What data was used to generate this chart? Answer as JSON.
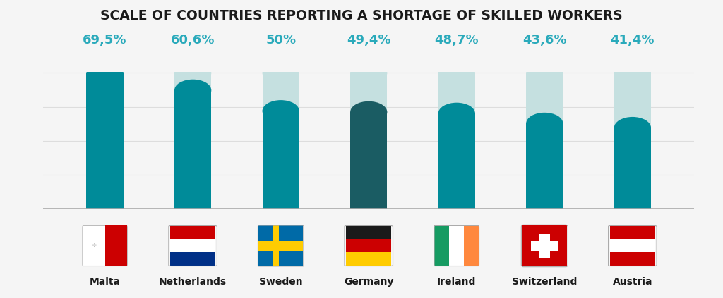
{
  "title": "SCALE OF COUNTRIES REPORTING A SHORTAGE OF SKILLED WORKERS",
  "categories": [
    "Malta",
    "Netherlands",
    "Sweden",
    "Germany",
    "Ireland",
    "Switzerland",
    "Austria"
  ],
  "values": [
    69.5,
    60.6,
    50.0,
    49.4,
    48.7,
    43.6,
    41.4
  ],
  "labels": [
    "69,5%",
    "60,6%",
    "50%",
    "49,4%",
    "48,7%",
    "43,6%",
    "41,4%"
  ],
  "bar_max": 69.5,
  "bar_colors": [
    "#008b99",
    "#008b99",
    "#008b99",
    "#1a5c63",
    "#008b99",
    "#008b99",
    "#008b99"
  ],
  "bg_bar_color": "#c5e0e0",
  "label_color": "#2aaabb",
  "title_color": "#1a1a1a",
  "bg_color": "#f5f5f5",
  "bar_width": 0.42,
  "cap_ratio": 0.08,
  "value_fontsize": 13,
  "title_fontsize": 13.5,
  "country_fontsize": 10,
  "grid_color": "#dddddd",
  "axis_line_color": "#aaaaaa",
  "flags": {
    "Malta": {
      "colors": [
        "#f5f5f5",
        "#cc0001"
      ],
      "type": "malta"
    },
    "Netherlands": {
      "colors": [
        "#cc0001",
        "#ffffff",
        "#003087"
      ],
      "type": "tricolor_h"
    },
    "Sweden": {
      "colors": [
        "#006aa7",
        "#fecc02"
      ],
      "type": "sweden"
    },
    "Germany": {
      "colors": [
        "#1a1a1a",
        "#cc0001",
        "#ffcc00"
      ],
      "type": "tricolor_h"
    },
    "Ireland": {
      "colors": [
        "#169b62",
        "#ffffff",
        "#ff883e"
      ],
      "type": "tricolor_v"
    },
    "Switzerland": {
      "colors": [
        "#cc0001",
        "#ffffff"
      ],
      "type": "swiss"
    },
    "Austria": {
      "colors": [
        "#cc0001",
        "#ffffff",
        "#cc0001"
      ],
      "type": "tricolor_h"
    }
  }
}
